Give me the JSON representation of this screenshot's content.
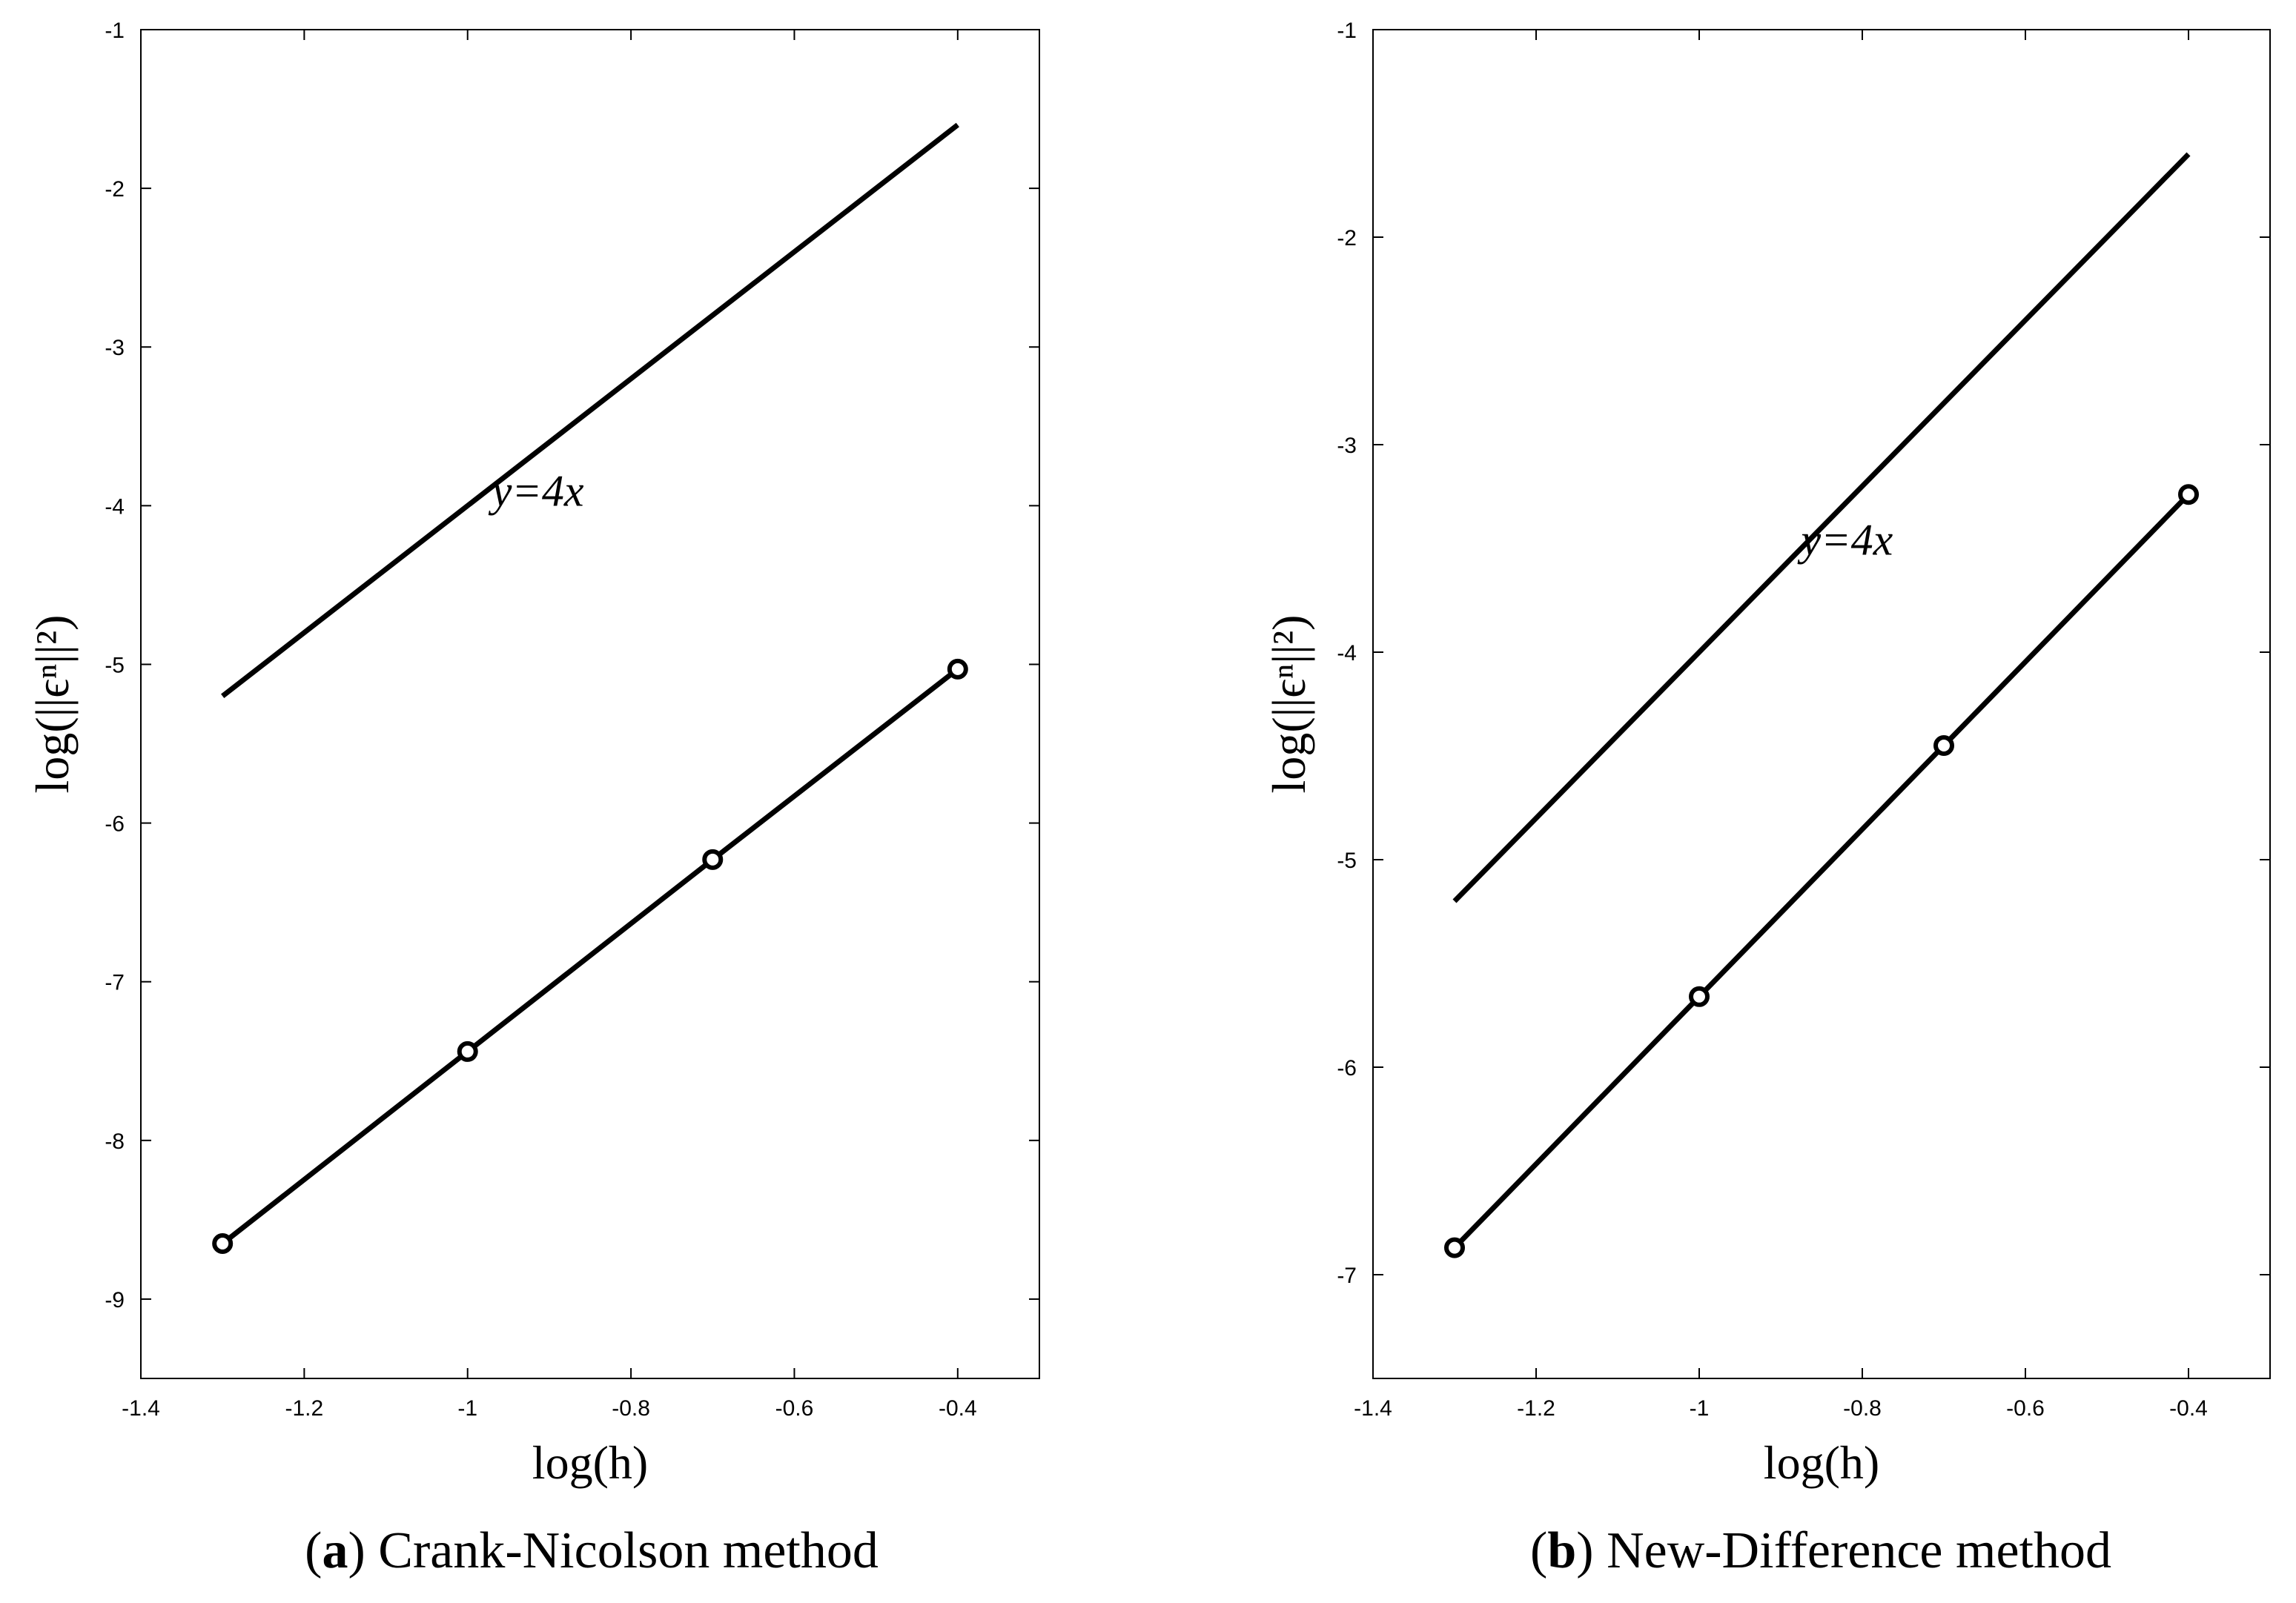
{
  "chart_data": [
    {
      "type": "line",
      "caption_letter": "a",
      "caption_text": "Crank-Nicolson method",
      "xlabel": "log(h)",
      "ylabel": "log(||ϵⁿ||²)",
      "xlim": [
        -1.4,
        -0.3
      ],
      "ylim": [
        -9.5,
        -1
      ],
      "xticks": [
        -1.4,
        -1.2,
        -1,
        -0.8,
        -0.6,
        -0.4
      ],
      "xtick_labels": [
        "-1.4",
        "-1.2",
        "-1",
        "-0.8",
        "-0.6",
        "-0.4"
      ],
      "yticks": [
        -9,
        -8,
        -7,
        -6,
        -5,
        -4,
        -3,
        -2,
        -1
      ],
      "ytick_labels": [
        "-9",
        "-8",
        "-7",
        "-6",
        "-5",
        "-4",
        "-3",
        "-2",
        "-1"
      ],
      "grid": false,
      "series": [
        {
          "x": [
            -1.3,
            -0.4
          ],
          "y": [
            -5.2,
            -1.6
          ],
          "marker": "none",
          "color": "#000000"
        },
        {
          "x": [
            -1.3,
            -1.0,
            -0.7,
            -0.4
          ],
          "y": [
            -8.65,
            -7.44,
            -6.23,
            -5.03
          ],
          "marker": "circle",
          "color": "#000000"
        }
      ],
      "annotations": [
        {
          "text": "y=4x",
          "x": -0.97,
          "y": -4.0
        }
      ]
    },
    {
      "type": "line",
      "caption_letter": "b",
      "caption_text": "New-Difference method",
      "xlabel": "log(h)",
      "ylabel": "log(||ϵⁿ||²)",
      "xlim": [
        -1.4,
        -0.3
      ],
      "ylim": [
        -7.5,
        -1
      ],
      "xticks": [
        -1.4,
        -1.2,
        -1,
        -0.8,
        -0.6,
        -0.4
      ],
      "xtick_labels": [
        "-1.4",
        "-1.2",
        "-1",
        "-0.8",
        "-0.6",
        "-0.4"
      ],
      "yticks": [
        -7,
        -6,
        -5,
        -4,
        -3,
        -2,
        -1
      ],
      "ytick_labels": [
        "-7",
        "-6",
        "-5",
        "-4",
        "-3",
        "-2",
        "-1"
      ],
      "grid": false,
      "series": [
        {
          "x": [
            -1.3,
            -0.4
          ],
          "y": [
            -5.2,
            -1.6
          ],
          "marker": "none",
          "color": "#000000"
        },
        {
          "x": [
            -1.3,
            -1.0,
            -0.7,
            -0.4
          ],
          "y": [
            -6.87,
            -5.66,
            -4.45,
            -3.24
          ],
          "marker": "circle",
          "color": "#000000"
        }
      ],
      "annotations": [
        {
          "text": "y=4x",
          "x": -0.875,
          "y": -3.53
        }
      ]
    }
  ]
}
